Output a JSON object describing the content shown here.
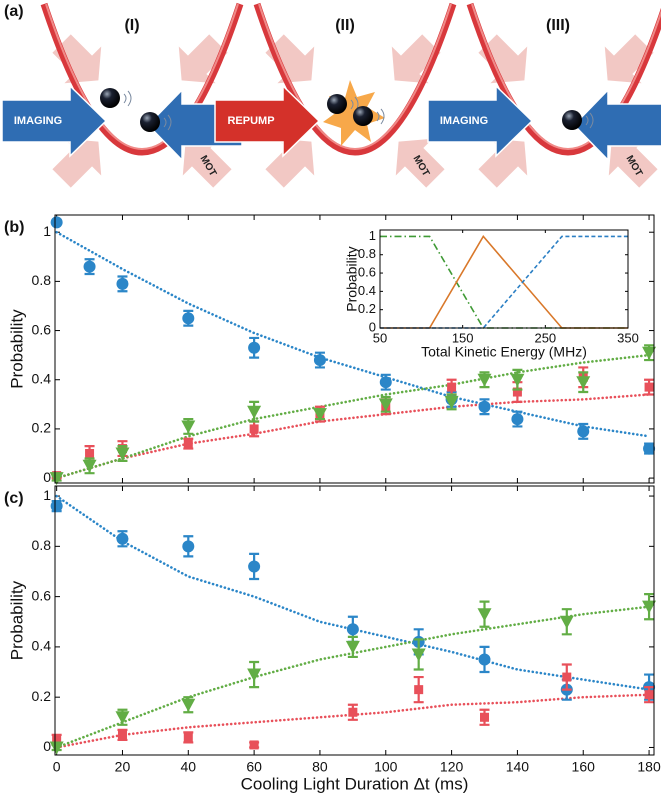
{
  "panel_a": {
    "label": "(a)",
    "scenes": [
      {
        "title": "(I)",
        "beam": "IMAGING",
        "beam_color": "#2f6db3",
        "mot": "MOT"
      },
      {
        "title": "(II)",
        "beam": "REPUMP",
        "beam_color": "#d4312a",
        "mot": "MOT"
      },
      {
        "title": "(III)",
        "beam": "IMAGING",
        "beam_color": "#2f6db3",
        "mot": "MOT"
      }
    ]
  },
  "chart_data": [
    {
      "type": "scatter",
      "panel_label": "(b)",
      "ylabel": "Probability",
      "xlim": [
        -0.5,
        181.5
      ],
      "xticks": [
        0,
        20,
        40,
        60,
        80,
        100,
        120,
        140,
        160,
        180
      ],
      "xtick_labels": false,
      "ylim": [
        -0.02,
        1.07
      ],
      "yticks": [
        0,
        0.2,
        0.4,
        0.6,
        0.8,
        1
      ],
      "series": [
        {
          "color": "#2b86c8",
          "dash": "dotted",
          "x": [
            0,
            20,
            40,
            60,
            80,
            100,
            120,
            140,
            160,
            180
          ],
          "values": [
            1.0,
            0.85,
            0.71,
            0.59,
            0.49,
            0.41,
            0.33,
            0.27,
            0.21,
            0.17
          ]
        },
        {
          "color": "#e8505a",
          "dash": "dotted",
          "x": [
            0,
            20,
            40,
            60,
            80,
            100,
            120,
            140,
            160,
            180
          ],
          "values": [
            0,
            0.08,
            0.14,
            0.18,
            0.23,
            0.26,
            0.29,
            0.31,
            0.32,
            0.34
          ]
        },
        {
          "color": "#62ad45",
          "dash": "dotted",
          "x": [
            0,
            20,
            40,
            60,
            80,
            100,
            120,
            140,
            160,
            180
          ],
          "values": [
            0,
            0.08,
            0.17,
            0.24,
            0.29,
            0.34,
            0.38,
            0.43,
            0.47,
            0.5
          ]
        },
        {
          "color": "#2b86c8",
          "marker": "circle",
          "x": [
            0,
            10,
            20,
            40,
            60,
            80,
            100,
            120,
            130,
            140,
            160,
            180
          ],
          "values": [
            1.04,
            0.86,
            0.79,
            0.65,
            0.53,
            0.48,
            0.39,
            0.32,
            0.29,
            0.24,
            0.19,
            0.12
          ],
          "errors": [
            0,
            0.03,
            0.03,
            0.03,
            0.04,
            0.03,
            0.03,
            0.03,
            0.03,
            0.03,
            0.03,
            0.02
          ]
        },
        {
          "color": "#e8505a",
          "marker": "square",
          "x": [
            0,
            10,
            20,
            40,
            60,
            80,
            100,
            120,
            140,
            160,
            180
          ],
          "values": [
            0.01,
            0.1,
            0.12,
            0.14,
            0.2,
            0.26,
            0.29,
            0.37,
            0.35,
            0.41,
            0.37
          ],
          "errors": [
            0.01,
            0.03,
            0.03,
            0.02,
            0.03,
            0.03,
            0.03,
            0.03,
            0.04,
            0.04,
            0.03
          ]
        },
        {
          "color": "#62ad45",
          "marker": "triangle-down",
          "x": [
            0,
            10,
            20,
            40,
            60,
            80,
            100,
            120,
            130,
            140,
            160,
            180
          ],
          "values": [
            0,
            0.05,
            0.1,
            0.21,
            0.27,
            0.26,
            0.3,
            0.31,
            0.4,
            0.4,
            0.39,
            0.51
          ],
          "errors": [
            0.01,
            0.03,
            0.03,
            0.03,
            0.04,
            0.02,
            0.03,
            0.03,
            0.03,
            0.04,
            0.04,
            0.03
          ]
        }
      ]
    },
    {
      "type": "scatter",
      "panel_label": "(c)",
      "ylabel": "Probability",
      "xlabel": "Cooling Light Duration Δt (ms)",
      "xlim": [
        -0.5,
        181.5
      ],
      "xticks": [
        0,
        20,
        40,
        60,
        80,
        100,
        120,
        140,
        160,
        180
      ],
      "ylim": [
        -0.03,
        1.04
      ],
      "yticks": [
        0,
        0.2,
        0.4,
        0.6,
        0.8,
        1
      ],
      "series": [
        {
          "color": "#2b86c8",
          "dash": "dotted",
          "x": [
            0,
            20,
            40,
            60,
            80,
            100,
            120,
            140,
            160,
            180
          ],
          "values": [
            1.0,
            0.82,
            0.68,
            0.6,
            0.5,
            0.44,
            0.38,
            0.31,
            0.27,
            0.23
          ]
        },
        {
          "color": "#e8505a",
          "dash": "dotted",
          "x": [
            0,
            20,
            40,
            60,
            80,
            100,
            120,
            140,
            160,
            180
          ],
          "values": [
            0,
            0.05,
            0.08,
            0.1,
            0.12,
            0.14,
            0.17,
            0.18,
            0.2,
            0.21
          ]
        },
        {
          "color": "#62ad45",
          "dash": "dotted",
          "x": [
            0,
            20,
            40,
            60,
            80,
            100,
            120,
            140,
            160,
            180
          ],
          "values": [
            0,
            0.1,
            0.2,
            0.28,
            0.35,
            0.4,
            0.45,
            0.49,
            0.53,
            0.56
          ]
        },
        {
          "color": "#2b86c8",
          "marker": "circle",
          "x": [
            0,
            20,
            40,
            60,
            90,
            110,
            130,
            155,
            180
          ],
          "values": [
            0.96,
            0.83,
            0.8,
            0.72,
            0.47,
            0.42,
            0.35,
            0.23,
            0.24
          ],
          "errors": [
            0.02,
            0.03,
            0.04,
            0.05,
            0.05,
            0.05,
            0.05,
            0.04,
            0.05
          ]
        },
        {
          "color": "#e8505a",
          "marker": "square",
          "x": [
            0,
            20,
            40,
            60,
            90,
            110,
            130,
            155,
            180
          ],
          "values": [
            0.03,
            0.05,
            0.04,
            0.01,
            0.14,
            0.23,
            0.12,
            0.28,
            0.21
          ],
          "errors": [
            0.02,
            0.02,
            0.02,
            0.01,
            0.03,
            0.05,
            0.03,
            0.05,
            0.03
          ]
        },
        {
          "color": "#62ad45",
          "marker": "triangle-down",
          "x": [
            0,
            20,
            40,
            60,
            90,
            110,
            130,
            155,
            180
          ],
          "values": [
            0,
            0.12,
            0.17,
            0.29,
            0.4,
            0.37,
            0.53,
            0.5,
            0.56
          ],
          "errors": [
            0.01,
            0.03,
            0.03,
            0.05,
            0.04,
            0.06,
            0.05,
            0.05,
            0.05
          ]
        }
      ]
    },
    {
      "type": "line",
      "ylabel": "Probability",
      "xlabel": "Total Kinetic Energy (MHz)",
      "xlim": [
        50,
        350
      ],
      "xticks": [
        50,
        150,
        250,
        350
      ],
      "ylim": [
        0,
        1.07
      ],
      "yticks": [
        0,
        0.2,
        0.4,
        0.6,
        0.8,
        1
      ],
      "series": [
        {
          "color": "#3f9a35",
          "dash": "dashdot",
          "x": [
            50,
            110,
            175,
            350
          ],
          "values": [
            1,
            1,
            0,
            0
          ]
        },
        {
          "color": "#d9782a",
          "dash": "solid",
          "x": [
            50,
            110,
            175,
            270,
            350
          ],
          "values": [
            0,
            0,
            1,
            0,
            0
          ]
        },
        {
          "color": "#2b7fc4",
          "dash": "dashed",
          "x": [
            50,
            175,
            270,
            350
          ],
          "values": [
            0,
            0,
            1,
            1
          ]
        }
      ]
    }
  ]
}
